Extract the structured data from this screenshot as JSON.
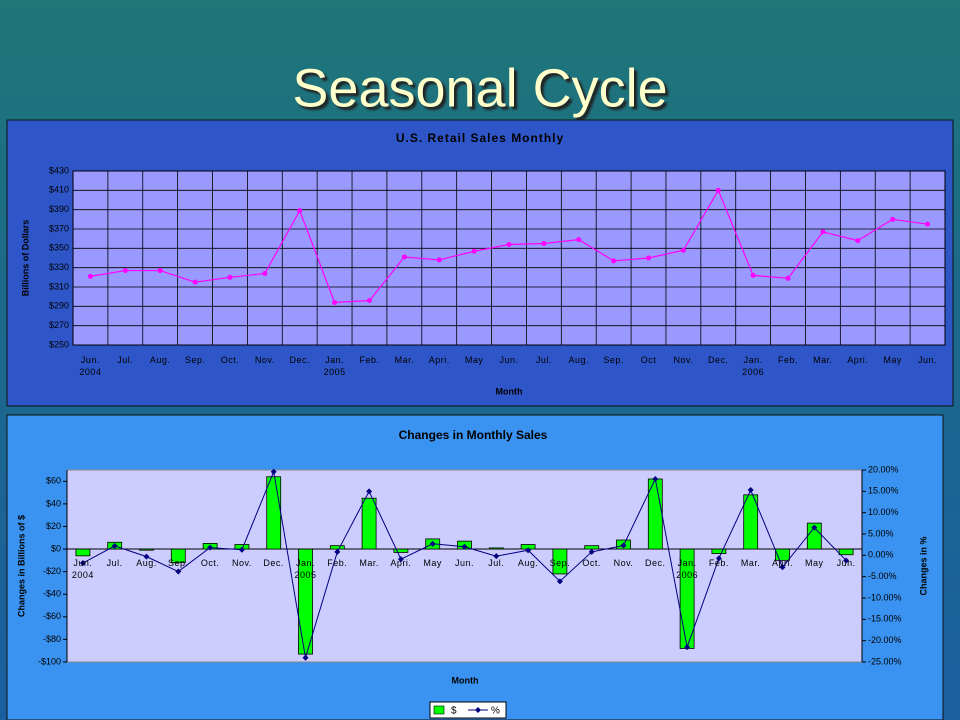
{
  "title": "Seasonal Cycle",
  "chart_data": [
    {
      "type": "line",
      "title": "U.S. Retail Sales Monthly",
      "y_label": "Billions of Dollars",
      "x_label": "Month",
      "categories": [
        "Jun.\n2004",
        "Jul.",
        "Aug.",
        "Sep.",
        "Oct.",
        "Nov.",
        "Dec.",
        "Jan.\n2005",
        "Feb.",
        "Mar.",
        "Apri.",
        "May",
        "Jun.",
        "Jul.",
        "Aug.",
        "Sep.",
        "Oct",
        "Nov.",
        "Dec.",
        "Jan.\n2006",
        "Feb.",
        "Mar.",
        "Apri.",
        "May",
        "Jun."
      ],
      "values": [
        321,
        327,
        327,
        315,
        320,
        324,
        389,
        294,
        296,
        341,
        338,
        347,
        354,
        355,
        359,
        337,
        340,
        348,
        410,
        322,
        319,
        367,
        358,
        380,
        375
      ],
      "color": "#ff00ff",
      "ylim": [
        250,
        430
      ],
      "yticks": [
        {
          "value": 250,
          "label": "$250"
        },
        {
          "value": 270,
          "label": "$270"
        },
        {
          "value": 290,
          "label": "$290"
        },
        {
          "value": 310,
          "label": "$310"
        },
        {
          "value": 330,
          "label": "$330"
        },
        {
          "value": 350,
          "label": "$350"
        },
        {
          "value": 370,
          "label": "$370"
        },
        {
          "value": 390,
          "label": "$390"
        },
        {
          "value": 410,
          "label": "$410"
        },
        {
          "value": 430,
          "label": "$430"
        }
      ],
      "grid": true
    },
    {
      "type": "combo",
      "title": "Changes in Monthly Sales",
      "y_label": "Changes in Billions of $",
      "y2_label": "Changes in %",
      "x_label": "Month",
      "categories": [
        "Jun.\n2004",
        "Jul.",
        "Aug.",
        "Sep.",
        "Oct.",
        "Nov.",
        "Dec.",
        "Jan.\n2005",
        "Feb.",
        "Mar.",
        "Apri.",
        "May",
        "Jun.",
        "Jul.",
        "Aug.",
        "Sep.",
        "Oct.",
        "Nov.",
        "Dec.",
        "Jan.\n2006",
        "Feb.",
        "Mar.",
        "Apri.",
        "May",
        "Jun."
      ],
      "series": [
        {
          "name": "$",
          "color": "#00ff00",
          "kind": "bar",
          "values": [
            -6,
            6,
            -1,
            -12,
            5,
            4,
            64,
            -93,
            3,
            45,
            -3,
            9,
            7,
            1,
            4,
            -22,
            3,
            8,
            62,
            -88,
            -4,
            48,
            -10,
            23,
            -5
          ]
        },
        {
          "name": "%",
          "color": "#000080",
          "kind": "line",
          "axis": "y2",
          "values": [
            -1.8,
            2.2,
            -0.3,
            -3.8,
            1.8,
            1.3,
            19.6,
            -24,
            0.8,
            15,
            -0.9,
            2.7,
            2,
            -0.2,
            1.2,
            -6.1,
            0.8,
            2.3,
            17.9,
            -21.5,
            -0.7,
            15.3,
            -2.8,
            6.5,
            -1.2
          ]
        }
      ],
      "ylim": [
        -100,
        70
      ],
      "yticks": [
        {
          "value": -100,
          "label": "-$100"
        },
        {
          "value": -80,
          "label": "-$80"
        },
        {
          "value": -60,
          "label": "-$60"
        },
        {
          "value": -40,
          "label": "-$40"
        },
        {
          "value": -20,
          "label": "-$20"
        },
        {
          "value": 0,
          "label": "$0"
        },
        {
          "value": 20,
          "label": "$20"
        },
        {
          "value": 40,
          "label": "$40"
        },
        {
          "value": 60,
          "label": "$60"
        }
      ],
      "y2lim": [
        -25,
        20
      ],
      "y2ticks": [
        {
          "value": -25,
          "label": "-25.00%"
        },
        {
          "value": -20,
          "label": "-20.00%"
        },
        {
          "value": -15,
          "label": "-15.00%"
        },
        {
          "value": -10,
          "label": "-10.00%"
        },
        {
          "value": -5,
          "label": "-5.00%"
        },
        {
          "value": 0,
          "label": "0.00%"
        },
        {
          "value": 5,
          "label": "5.00%"
        },
        {
          "value": 10,
          "label": "10.00%"
        },
        {
          "value": 15,
          "label": "15.00%"
        },
        {
          "value": 20,
          "label": "20.00%"
        }
      ],
      "legend": "bottom"
    }
  ]
}
